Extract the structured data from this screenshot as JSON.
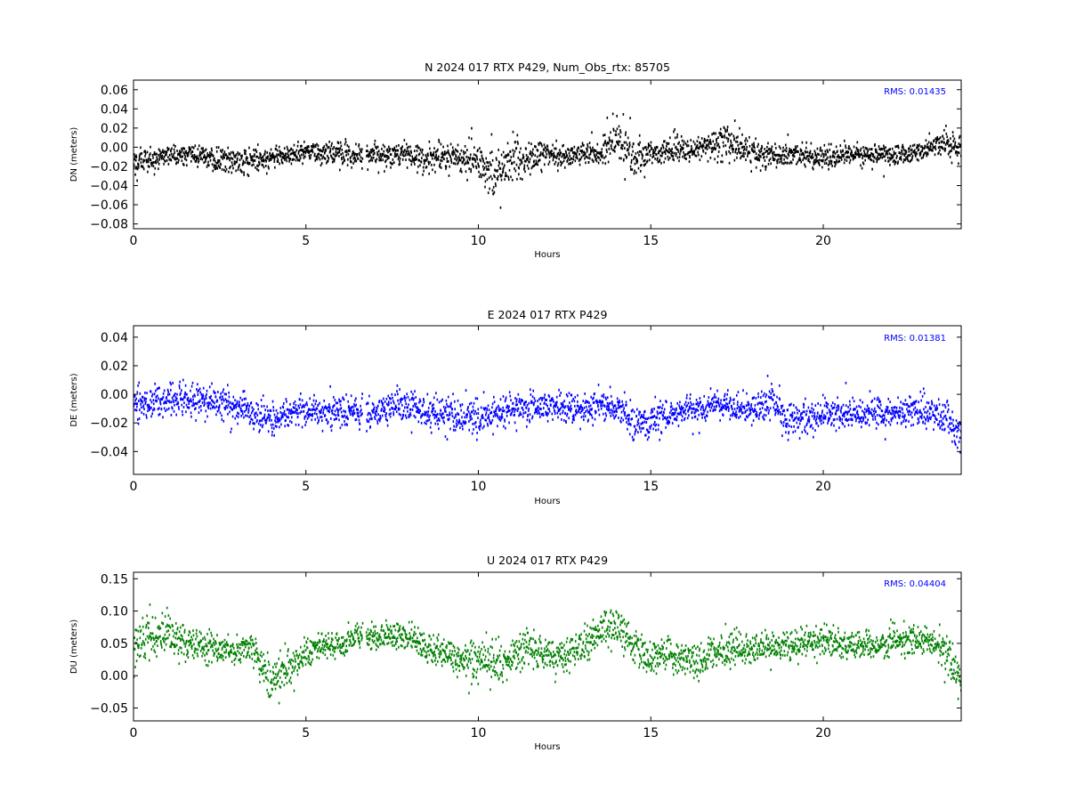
{
  "figure": {
    "background": "#ffffff"
  },
  "chart_data": [
    {
      "type": "scatter",
      "title": "N 2024 017 RTX  P429, Num_Obs_rtx: 85705",
      "xlabel": "Hours",
      "ylabel": "DN (meters)",
      "xlim": [
        0,
        24
      ],
      "ylim": [
        -0.085,
        0.07
      ],
      "xticks": [
        0,
        5,
        10,
        15,
        20
      ],
      "xtick_labels": [
        "0",
        "5",
        "10",
        "15",
        "20"
      ],
      "yticks": [
        -0.08,
        -0.06,
        -0.04,
        -0.02,
        0.0,
        0.02,
        0.04,
        0.06
      ],
      "ytick_labels": [
        "−0.08",
        "−0.06",
        "−0.04",
        "−0.02",
        "0.00",
        "0.02",
        "0.04",
        "0.06"
      ],
      "annotation": "RMS:  0.01435",
      "rms": 0.01435,
      "num_obs": 85705,
      "color": "#000000",
      "annotation_color": "#0000ff",
      "grid": false,
      "gap_hours": [
        6.65,
        6.75
      ],
      "series": [
        {
          "x": [
            0,
            0.5,
            1,
            1.5,
            2,
            2.5,
            3,
            3.5,
            4,
            4.5,
            5,
            5.5,
            6,
            6.5,
            7,
            7.5,
            8,
            8.5,
            9,
            9.5,
            10,
            10.5,
            11,
            11.5,
            12,
            12.5,
            13,
            13.5,
            14,
            14.5,
            15,
            15.5,
            16,
            16.5,
            17,
            17.5,
            18,
            18.5,
            19,
            19.5,
            20,
            20.5,
            21,
            21.5,
            22,
            22.5,
            23,
            23.5,
            24
          ],
          "center": [
            -0.012,
            -0.012,
            -0.008,
            -0.008,
            -0.008,
            -0.014,
            -0.014,
            -0.012,
            -0.012,
            -0.008,
            -0.004,
            -0.006,
            -0.006,
            -0.008,
            -0.008,
            -0.008,
            -0.008,
            -0.012,
            -0.008,
            -0.012,
            -0.016,
            -0.03,
            -0.012,
            -0.01,
            -0.008,
            -0.01,
            -0.006,
            -0.006,
            0.012,
            -0.01,
            -0.008,
            -0.004,
            -0.004,
            0.0,
            0.006,
            0.002,
            -0.008,
            -0.008,
            -0.008,
            -0.01,
            -0.01,
            -0.008,
            -0.008,
            -0.008,
            -0.008,
            -0.008,
            -0.002,
            0.006,
            0.0
          ],
          "spread": [
            0.014,
            0.013,
            0.012,
            0.012,
            0.012,
            0.014,
            0.014,
            0.013,
            0.012,
            0.012,
            0.012,
            0.012,
            0.013,
            0.012,
            0.012,
            0.012,
            0.014,
            0.014,
            0.014,
            0.014,
            0.016,
            0.024,
            0.022,
            0.016,
            0.014,
            0.012,
            0.011,
            0.011,
            0.026,
            0.022,
            0.013,
            0.012,
            0.012,
            0.012,
            0.022,
            0.016,
            0.014,
            0.013,
            0.012,
            0.012,
            0.013,
            0.012,
            0.011,
            0.011,
            0.01,
            0.01,
            0.012,
            0.013,
            0.014
          ]
        }
      ]
    },
    {
      "type": "scatter",
      "title": "E 2024 017 RTX  P429",
      "xlabel": "Hours",
      "ylabel": "DE (meters)",
      "xlim": [
        0,
        24
      ],
      "ylim": [
        -0.056,
        0.048
      ],
      "xticks": [
        0,
        5,
        10,
        15,
        20
      ],
      "xtick_labels": [
        "0",
        "5",
        "10",
        "15",
        "20"
      ],
      "yticks": [
        -0.04,
        -0.02,
        0.0,
        0.02,
        0.04
      ],
      "ytick_labels": [
        "−0.04",
        "−0.02",
        "0.00",
        "0.02",
        "0.04"
      ],
      "annotation": "RMS:  0.01381",
      "rms": 0.01381,
      "color": "#0000ff",
      "annotation_color": "#0000ff",
      "grid": false,
      "gap_hours": [
        6.65,
        6.75
      ],
      "series": [
        {
          "x": [
            0,
            0.5,
            1,
            1.5,
            2,
            2.5,
            3,
            3.5,
            4,
            4.5,
            5,
            5.5,
            6,
            6.5,
            7,
            7.5,
            8,
            8.5,
            9,
            9.5,
            10,
            10.5,
            11,
            11.5,
            12,
            12.5,
            13,
            13.5,
            14,
            14.5,
            15,
            15.5,
            16,
            16.5,
            17,
            17.5,
            18,
            18.5,
            19,
            19.5,
            20,
            20.5,
            21,
            21.5,
            22,
            22.5,
            23,
            23.5,
            24
          ],
          "center": [
            -0.006,
            -0.006,
            -0.004,
            -0.004,
            -0.004,
            -0.006,
            -0.008,
            -0.014,
            -0.02,
            -0.014,
            -0.012,
            -0.012,
            -0.012,
            -0.012,
            -0.012,
            -0.008,
            -0.008,
            -0.012,
            -0.014,
            -0.014,
            -0.016,
            -0.014,
            -0.01,
            -0.01,
            -0.008,
            -0.008,
            -0.01,
            -0.008,
            -0.008,
            -0.02,
            -0.02,
            -0.014,
            -0.01,
            -0.01,
            -0.008,
            -0.008,
            -0.012,
            -0.004,
            -0.016,
            -0.016,
            -0.014,
            -0.014,
            -0.014,
            -0.014,
            -0.012,
            -0.012,
            -0.012,
            -0.016,
            -0.03
          ],
          "spread": [
            0.012,
            0.011,
            0.011,
            0.01,
            0.01,
            0.01,
            0.01,
            0.011,
            0.01,
            0.01,
            0.01,
            0.01,
            0.01,
            0.011,
            0.011,
            0.012,
            0.012,
            0.012,
            0.013,
            0.013,
            0.012,
            0.011,
            0.01,
            0.01,
            0.01,
            0.01,
            0.01,
            0.01,
            0.011,
            0.012,
            0.012,
            0.011,
            0.01,
            0.01,
            0.01,
            0.01,
            0.011,
            0.012,
            0.012,
            0.011,
            0.01,
            0.01,
            0.01,
            0.01,
            0.01,
            0.01,
            0.01,
            0.012,
            0.012
          ]
        }
      ]
    },
    {
      "type": "scatter",
      "title": "U 2024 017 RTX  P429",
      "xlabel": "Hours",
      "ylabel": "DU (meters)",
      "xlim": [
        0,
        24
      ],
      "ylim": [
        -0.07,
        0.16
      ],
      "xticks": [
        0,
        5,
        10,
        15,
        20
      ],
      "xtick_labels": [
        "0",
        "5",
        "10",
        "15",
        "20"
      ],
      "yticks": [
        -0.05,
        0.0,
        0.05,
        0.1,
        0.15
      ],
      "ytick_labels": [
        "−0.05",
        "0.00",
        "0.05",
        "0.10",
        "0.15"
      ],
      "annotation": "RMS:  0.04404",
      "rms": 0.04404,
      "color": "#008000",
      "annotation_color": "#0000ff",
      "grid": false,
      "gap_hours": [
        6.65,
        6.75
      ],
      "series": [
        {
          "x": [
            0,
            0.5,
            1,
            1.5,
            2,
            2.5,
            3,
            3.5,
            4,
            4.5,
            5,
            5.5,
            6,
            6.5,
            7,
            7.5,
            8,
            8.5,
            9,
            9.5,
            10,
            10.5,
            11,
            11.5,
            12,
            12.5,
            13,
            13.5,
            14,
            14.5,
            15,
            15.5,
            16,
            16.5,
            17,
            17.5,
            18,
            18.5,
            19,
            19.5,
            20,
            20.5,
            21,
            21.5,
            22,
            22.5,
            23,
            23.5,
            24
          ],
          "center": [
            0.045,
            0.065,
            0.065,
            0.05,
            0.045,
            0.04,
            0.04,
            0.04,
            -0.01,
            0.01,
            0.035,
            0.045,
            0.05,
            0.06,
            0.06,
            0.065,
            0.06,
            0.04,
            0.035,
            0.025,
            0.02,
            0.02,
            0.03,
            0.045,
            0.035,
            0.03,
            0.05,
            0.07,
            0.08,
            0.045,
            0.025,
            0.035,
            0.02,
            0.025,
            0.035,
            0.04,
            0.04,
            0.045,
            0.045,
            0.05,
            0.055,
            0.045,
            0.05,
            0.045,
            0.05,
            0.055,
            0.055,
            0.04,
            -0.01
          ],
          "spread": [
            0.03,
            0.032,
            0.032,
            0.025,
            0.022,
            0.022,
            0.022,
            0.025,
            0.03,
            0.03,
            0.022,
            0.02,
            0.02,
            0.02,
            0.02,
            0.02,
            0.022,
            0.024,
            0.025,
            0.028,
            0.03,
            0.032,
            0.03,
            0.028,
            0.026,
            0.026,
            0.028,
            0.03,
            0.034,
            0.03,
            0.026,
            0.026,
            0.026,
            0.026,
            0.025,
            0.024,
            0.022,
            0.022,
            0.022,
            0.022,
            0.022,
            0.022,
            0.02,
            0.02,
            0.022,
            0.024,
            0.024,
            0.026,
            0.03
          ]
        }
      ]
    }
  ]
}
